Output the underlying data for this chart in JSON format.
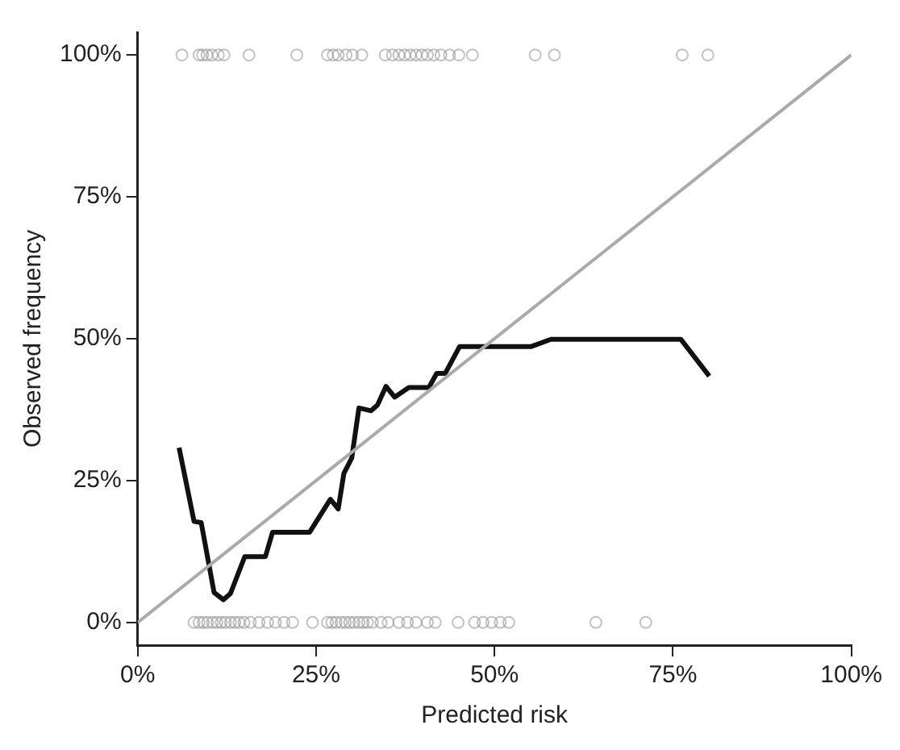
{
  "chart_data": {
    "type": "line",
    "xlabel": "Predicted risk",
    "ylabel": "Observed frequency",
    "xlim": [
      0,
      100
    ],
    "ylim": [
      -4,
      104
    ],
    "xticks": [
      {
        "value": 0,
        "label": "0%"
      },
      {
        "value": 25,
        "label": "25%"
      },
      {
        "value": 50,
        "label": "50%"
      },
      {
        "value": 75,
        "label": "75%"
      },
      {
        "value": 100,
        "label": "100%"
      }
    ],
    "yticks": [
      {
        "value": 0,
        "label": "0%"
      },
      {
        "value": 25,
        "label": "25%"
      },
      {
        "value": 50,
        "label": "50%"
      },
      {
        "value": 75,
        "label": "75%"
      },
      {
        "value": 100,
        "label": "100%"
      }
    ],
    "grid": false,
    "legend": false,
    "series": [
      {
        "color": "#aaaaaa",
        "marker": "none",
        "x": [
          0,
          100
        ],
        "values": [
          0,
          100
        ]
      },
      {
        "type": "scatter",
        "color": "#999999",
        "marker": "circle",
        "x": [
          6.2,
          8.6,
          9.1,
          9.7,
          10.4,
          11.3,
          12.1,
          15.6,
          22.3,
          26.6,
          27.4,
          28.1,
          29.2,
          30.1,
          31.4,
          34.7,
          35.7,
          36.6,
          37.4,
          38.2,
          39.0,
          39.8,
          40.6,
          41.5,
          42.5,
          43.7,
          45.0,
          46.9,
          55.7,
          58.4,
          76.3,
          79.9
        ],
        "values": [
          100,
          100,
          100,
          100,
          100,
          100,
          100,
          100,
          100,
          100,
          100,
          100,
          100,
          100,
          100,
          100,
          100,
          100,
          100,
          100,
          100,
          100,
          100,
          100,
          100,
          100,
          100,
          100,
          100,
          100,
          100,
          100
        ]
      },
      {
        "type": "scatter",
        "color": "#999999",
        "marker": "circle",
        "x": [
          7.9,
          8.6,
          9.2,
          9.8,
          10.5,
          11.1,
          11.7,
          12.3,
          13.0,
          13.6,
          14.2,
          14.9,
          15.8,
          17.0,
          18.2,
          19.3,
          20.5,
          21.7,
          24.5,
          26.6,
          27.2,
          27.8,
          28.5,
          29.1,
          29.7,
          30.3,
          31.0,
          31.6,
          32.2,
          32.9,
          34.1,
          35.1,
          36.6,
          37.8,
          39.0,
          40.6,
          41.7,
          44.9,
          47.2,
          48.4,
          49.6,
          50.8,
          52.0,
          64.2,
          71.2
        ],
        "values": [
          0,
          0,
          0,
          0,
          0,
          0,
          0,
          0,
          0,
          0,
          0,
          0,
          0,
          0,
          0,
          0,
          0,
          0,
          0,
          0,
          0,
          0,
          0,
          0,
          0,
          0,
          0,
          0,
          0,
          0,
          0,
          0,
          0,
          0,
          0,
          0,
          0,
          0,
          0,
          0,
          0,
          0,
          0,
          0,
          0
        ]
      },
      {
        "color": "#111111",
        "marker": "none",
        "x": [
          5.8,
          7.9,
          8.9,
          10.7,
          12.0,
          13.0,
          15.0,
          17.9,
          18.9,
          24.1,
          27.0,
          28.1,
          28.9,
          30.0,
          31.0,
          32.7,
          33.6,
          34.8,
          36.0,
          38.0,
          40.8,
          41.9,
          43.1,
          45.1,
          55.1,
          57.9,
          76.1,
          80.1
        ],
        "values": [
          30.8,
          17.8,
          17.6,
          5.3,
          4.0,
          5.1,
          11.6,
          11.6,
          15.9,
          15.9,
          21.7,
          20.0,
          26.3,
          29.0,
          37.8,
          37.3,
          38.3,
          41.6,
          39.7,
          41.4,
          41.4,
          43.9,
          43.9,
          48.6,
          48.6,
          49.9,
          49.9,
          43.4
        ]
      }
    ]
  }
}
